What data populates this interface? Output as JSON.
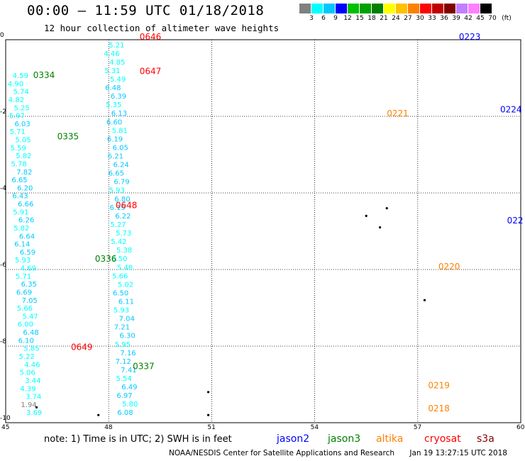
{
  "title": "00:00 – 11:59 UTC 01/18/2018",
  "subtitle": "12 hour collection of altimeter wave heights",
  "colorbar": {
    "unit": "(ft)",
    "labels": [
      "3",
      "6",
      "9",
      "12",
      "15",
      "18",
      "21",
      "24",
      "27",
      "30",
      "33",
      "36",
      "39",
      "42",
      "45",
      "70"
    ],
    "colors": [
      "#808080",
      "#00ffff",
      "#00c8ff",
      "#0000ff",
      "#00c000",
      "#00a000",
      "#008000",
      "#ffff00",
      "#ffc000",
      "#ff8000",
      "#ff0000",
      "#c00000",
      "#800000",
      "#c080ff",
      "#ff80ff",
      "#000000"
    ]
  },
  "map": {
    "lon_ticks": [
      "45",
      "48",
      "51",
      "54",
      "57",
      "60"
    ],
    "lat_ticks": [
      "0",
      "-2",
      "-4",
      "-6",
      "-8",
      "-10"
    ],
    "lon_range": [
      45,
      60
    ],
    "lat_range": [
      -10,
      0
    ]
  },
  "passes": [
    {
      "label": "0646",
      "sat": "cryosat",
      "lon": 48.0,
      "lat": -0.2,
      "label_lon": 48.9,
      "label_lat": 0.0,
      "values": [
        "5.21",
        "4.46",
        "4.85",
        "5.31",
        "5.49",
        "6.48",
        "6.39",
        "5.35",
        "6.13",
        "6.60",
        "5.81",
        "6.19",
        "6.05",
        "6.21",
        "6.24",
        "6.65",
        "6.79",
        "5.93",
        "6.80",
        "6.19",
        "6.22",
        "5.27",
        "5.73",
        "5.42",
        "5.38",
        "5.50",
        "5.48",
        "5.66",
        "5.02",
        "6.50",
        "6.11",
        "5.93",
        "7.04",
        "7.21",
        "6.30",
        "5.95",
        "7.16",
        "7.12",
        "7.41",
        "5.54",
        "6.49",
        "6.97",
        "5.80",
        "6.08"
      ],
      "lat_end": -9.8,
      "lon_end": 48.4
    },
    {
      "label": "0334",
      "sat": "jason3",
      "lon": 45.2,
      "lat": -1.0,
      "label_lon": 45.8,
      "label_lat": -1.0,
      "values": [
        "4.59",
        "4.90",
        "5.74",
        "4.82",
        "5.25",
        "5.97",
        "6.03",
        "5.71",
        "5.05",
        "5.59",
        "5.82",
        "5.78",
        "7.82",
        "6.65",
        "6.20",
        "6.43",
        "6.66",
        "5.91",
        "6.26",
        "5.82",
        "6.64",
        "6.14",
        "6.59",
        "5.93",
        "4.69",
        "5.71",
        "6.35",
        "6.69",
        "7.05",
        "5.66",
        "5.47",
        "6.00",
        "6.48",
        "6.10",
        "5.85",
        "5.22",
        "4.46",
        "5.06",
        "3.44",
        "4.39",
        "3.74",
        "1.94",
        "3.69"
      ],
      "lat_end": -9.8,
      "lon_end": 45.6
    },
    {
      "label": "0221",
      "sat": "altika",
      "lon": 54.6,
      "lat": 0.0,
      "label_lon": 56.1,
      "label_lat": -2.0
    },
    {
      "label": "0223",
      "sat": "jason2",
      "lon": 57.6,
      "lat": 0.0,
      "label_lon": 58.2,
      "label_lat": 0.0
    },
    {
      "label": "0224",
      "sat": "jason2",
      "lon": 59.0,
      "lat": -2.0,
      "label_lon": 59.4,
      "label_lat": -1.9
    },
    {
      "label": "0220",
      "sat": "altika",
      "lon": 56.0,
      "lat": -6.0,
      "label_lon": 57.6,
      "label_lat": -6.0
    },
    {
      "label": "0219",
      "sat": "altika",
      "lon": 57.0,
      "lat": -9.0,
      "label_lon": 57.3,
      "label_lat": -9.1
    },
    {
      "label": "0218",
      "sat": "altika",
      "lon": 57.0,
      "lat": -9.6,
      "label_lon": 57.3,
      "label_lat": -9.7
    }
  ],
  "labels_extra": [
    {
      "text": "0335",
      "sat": "jason3",
      "lon": 46.5,
      "lat": -2.6
    },
    {
      "text": "0336",
      "sat": "jason3",
      "lon": 47.6,
      "lat": -5.8
    },
    {
      "text": "0337",
      "sat": "jason3",
      "lon": 48.7,
      "lat": -8.6
    },
    {
      "text": "0647",
      "sat": "cryosat",
      "lon": 48.9,
      "lat": -0.9
    },
    {
      "text": "0648",
      "sat": "cryosat",
      "lon": 48.2,
      "lat": -4.4
    },
    {
      "text": "0649",
      "sat": "cryosat",
      "lon": 46.9,
      "lat": -8.1
    },
    {
      "text": "022",
      "sat": "jason2",
      "lon": 59.6,
      "lat": -4.8
    }
  ],
  "legend": {
    "note": "note:  1) Time is in UTC;  2) SWH is in feet",
    "items": [
      {
        "name": "jason2",
        "color": "#0000ff"
      },
      {
        "name": "jason3",
        "color": "#008000"
      },
      {
        "name": "altika",
        "color": "#ff8000"
      },
      {
        "name": "cryosat",
        "color": "#ff0000"
      },
      {
        "name": "s3a",
        "color": "#800000"
      }
    ]
  },
  "footer": {
    "source": "NOAA/NESDIS Center for Satellite Applications and Research",
    "timestamp": "Jan 19 13:27:15 UTC 2018"
  }
}
